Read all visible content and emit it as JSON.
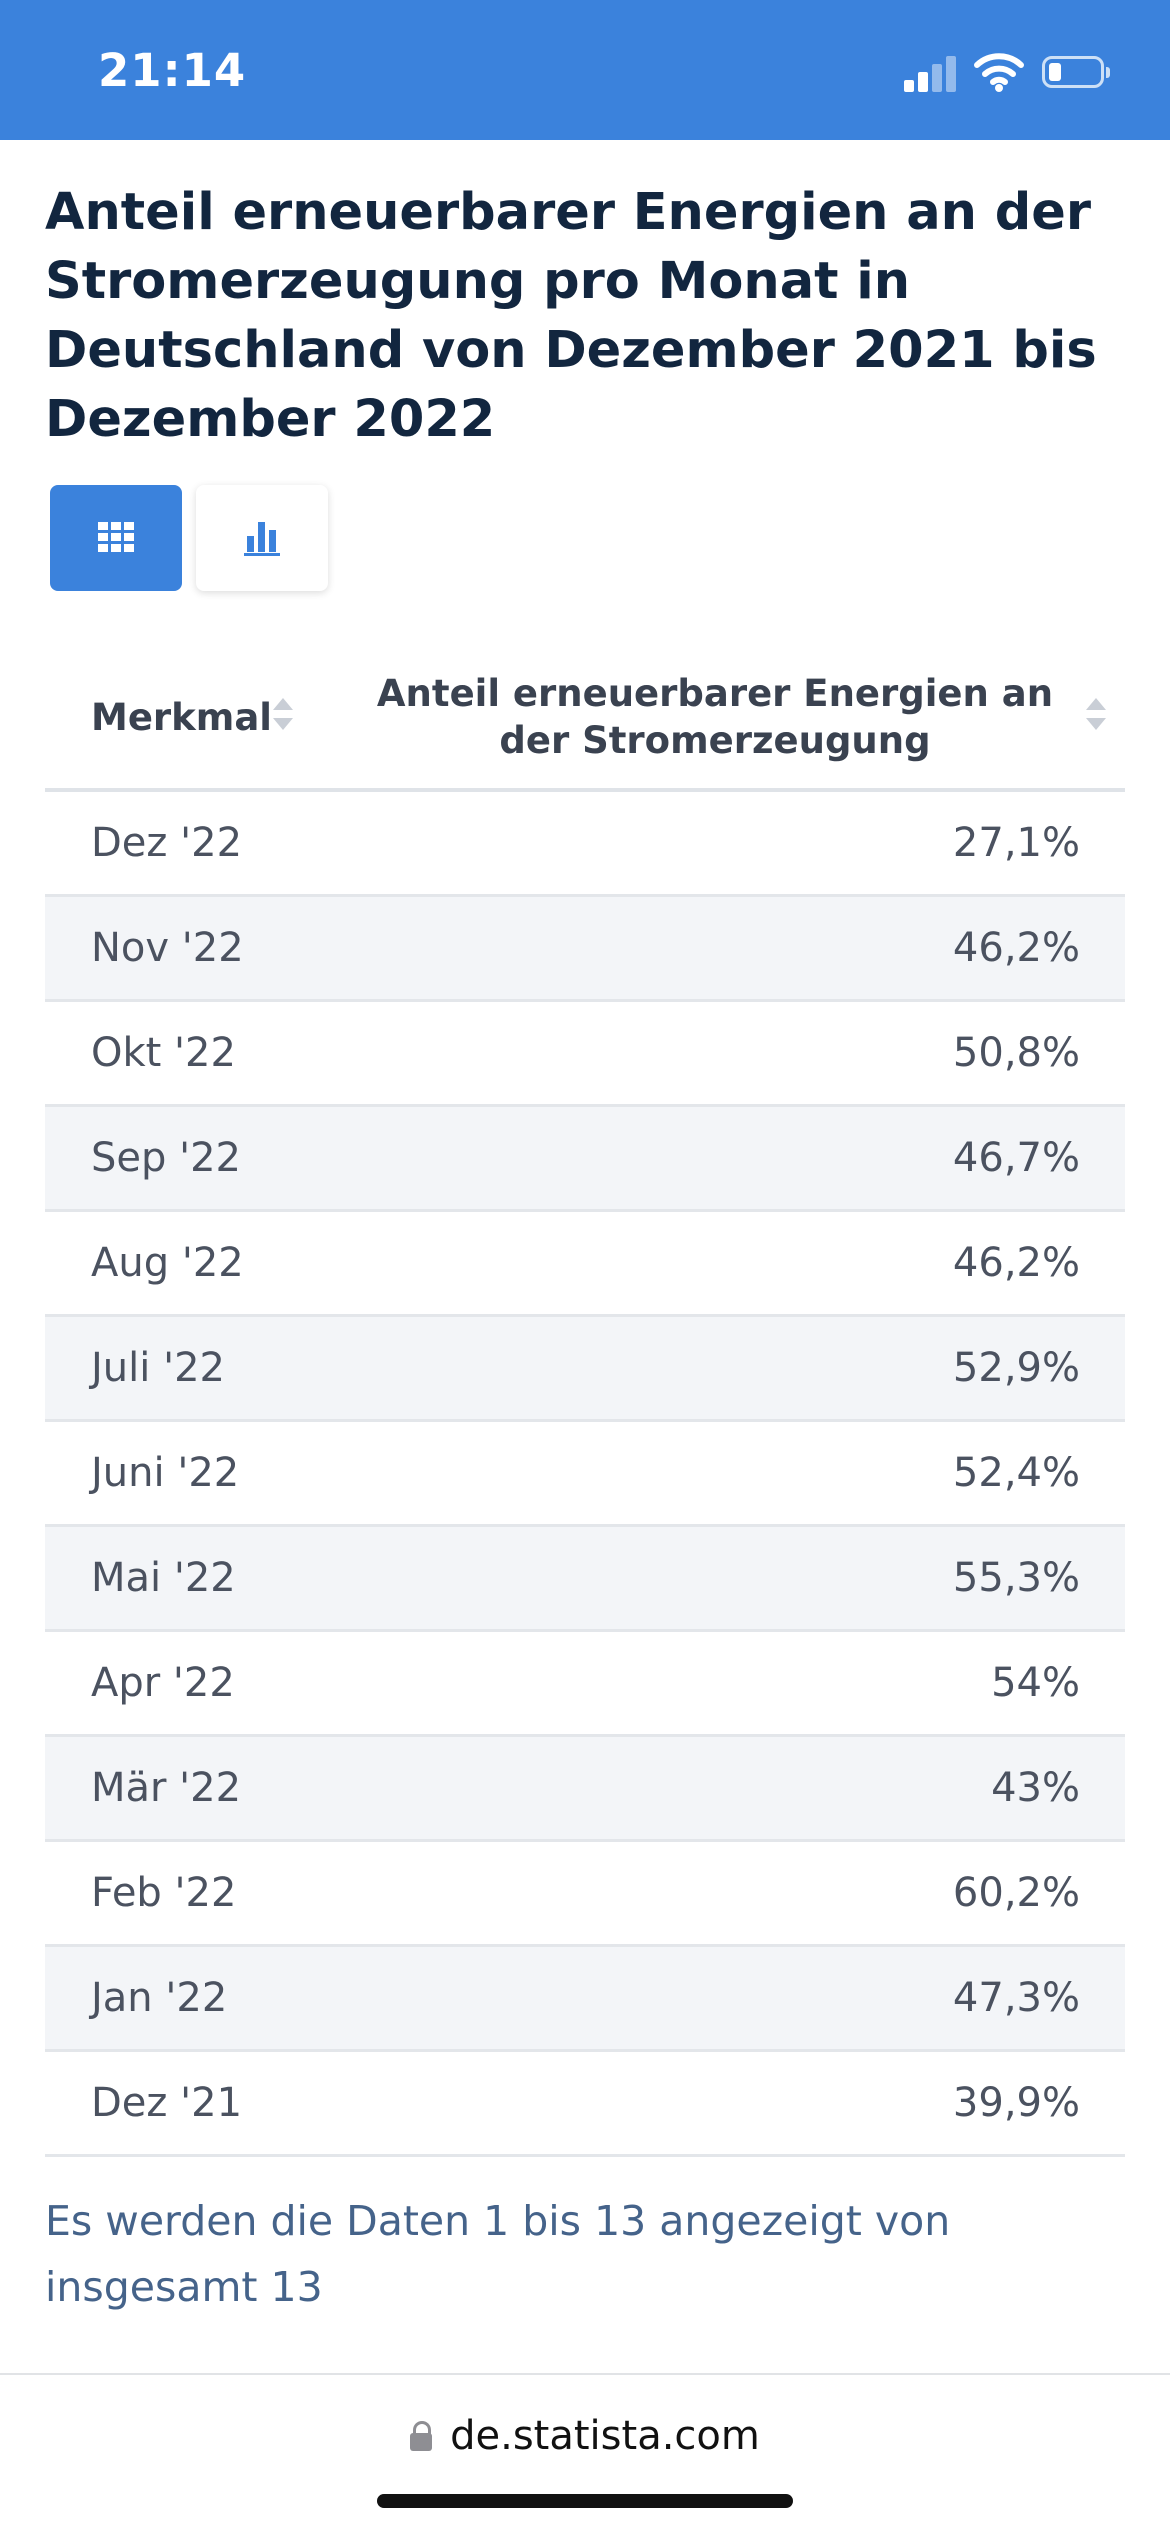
{
  "status_bar": {
    "time": "21:14",
    "background_color": "#3b82dc",
    "icons": [
      "cellular-signal-icon",
      "wifi-icon",
      "battery-icon"
    ]
  },
  "page": {
    "title": "Anteil erneuerbarer Energien an der Stromerzeugung pro Monat in Deutschland von Dezember 2021 bis Dezember 2022"
  },
  "view_toggle": {
    "active": "table",
    "options": [
      {
        "name": "table",
        "icon": "table-grid-icon"
      },
      {
        "name": "chart",
        "icon": "bar-chart-icon"
      }
    ],
    "active_color": "#3b82dc"
  },
  "table": {
    "columns": [
      "Merkmal",
      "Anteil erneuerbarer Energien an der Stromerzeugung"
    ],
    "rows": [
      {
        "label": "Dez '22",
        "value": "27,1%"
      },
      {
        "label": "Nov '22",
        "value": "46,2%"
      },
      {
        "label": "Okt '22",
        "value": "50,8%"
      },
      {
        "label": "Sep '22",
        "value": "46,7%"
      },
      {
        "label": "Aug '22",
        "value": "46,2%"
      },
      {
        "label": "Juli '22",
        "value": "52,9%"
      },
      {
        "label": "Juni '22",
        "value": "52,4%"
      },
      {
        "label": "Mai '22",
        "value": "55,3%"
      },
      {
        "label": "Apr '22",
        "value": "54%"
      },
      {
        "label": "Mär '22",
        "value": "43%"
      },
      {
        "label": "Feb '22",
        "value": "60,2%"
      },
      {
        "label": "Jan '22",
        "value": "47,3%"
      },
      {
        "label": "Dez '21",
        "value": "39,9%"
      }
    ]
  },
  "footer": {
    "pagination_text": "Es werden die Daten 1 bis 13 angezeigt von insgesamt 13"
  },
  "browser": {
    "url": "de.statista.com"
  }
}
